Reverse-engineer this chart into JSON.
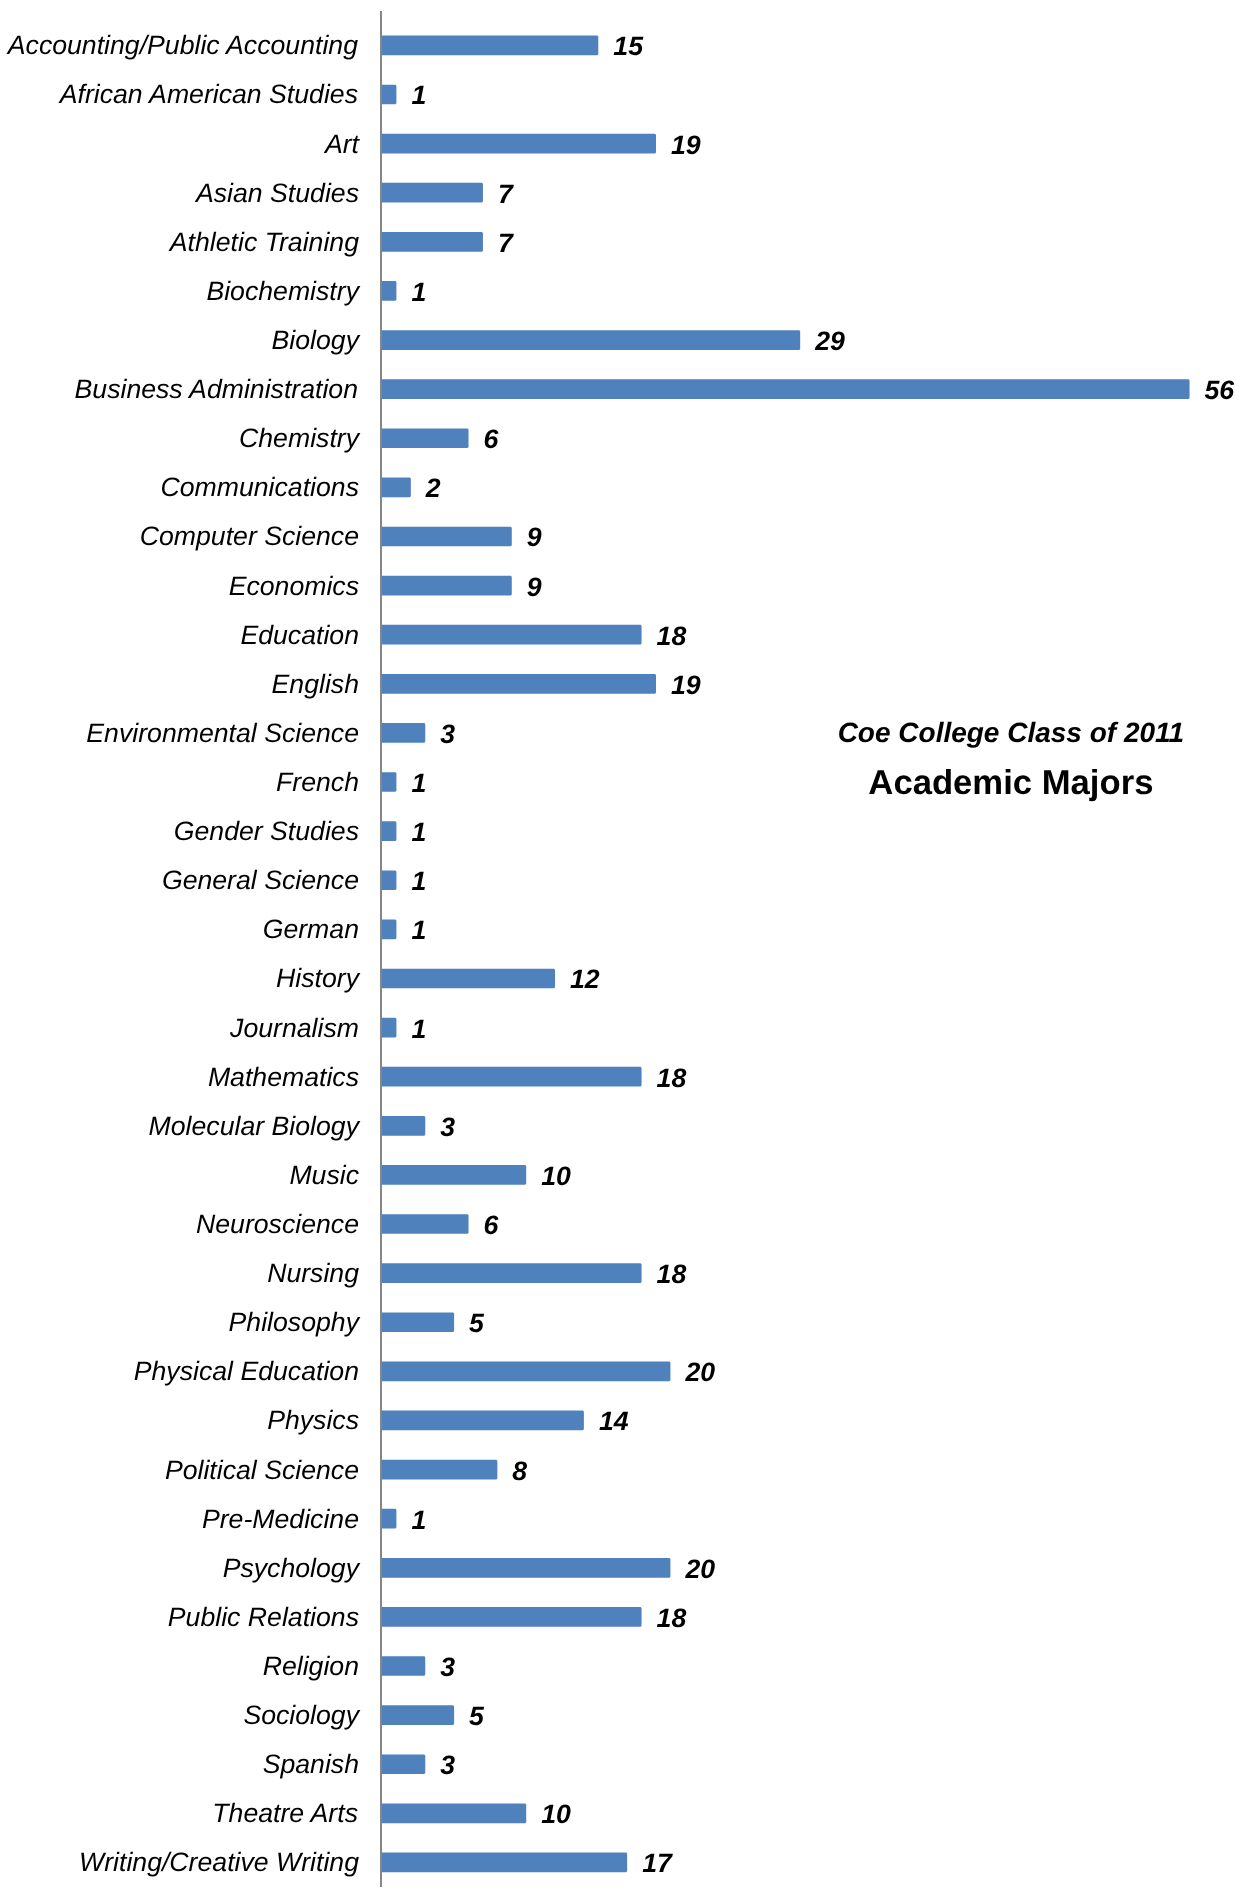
{
  "chart_data": {
    "type": "bar",
    "orientation": "horizontal",
    "title": "Coe College Class of 2011",
    "subtitle": "Academic Majors",
    "categories": [
      "Accounting/Public Accounting",
      "African American Studies",
      "Art",
      "Asian Studies",
      "Athletic Training",
      "Biochemistry",
      "Biology",
      "Business Administration",
      "Chemistry",
      "Communications",
      "Computer Science",
      "Economics",
      "Education",
      "English",
      "Environmental Science",
      "French",
      "Gender Studies",
      "General Science",
      "German",
      "History",
      "Journalism",
      "Mathematics",
      "Molecular Biology",
      "Music",
      "Neuroscience",
      "Nursing",
      "Philosophy",
      "Physical Education",
      "Physics",
      "Political Science",
      "Pre-Medicine",
      "Psychology",
      "Public Relations",
      "Religion",
      "Sociology",
      "Spanish",
      "Theatre Arts",
      "Writing/Creative Writing"
    ],
    "values": [
      15,
      1,
      19,
      7,
      7,
      1,
      29,
      56,
      6,
      2,
      9,
      9,
      18,
      19,
      3,
      1,
      1,
      1,
      1,
      12,
      1,
      18,
      3,
      10,
      6,
      18,
      5,
      20,
      14,
      8,
      1,
      20,
      18,
      3,
      5,
      3,
      10,
      17
    ],
    "color": "#4f81bd",
    "data_labels": true,
    "tick_labels": "y"
  }
}
